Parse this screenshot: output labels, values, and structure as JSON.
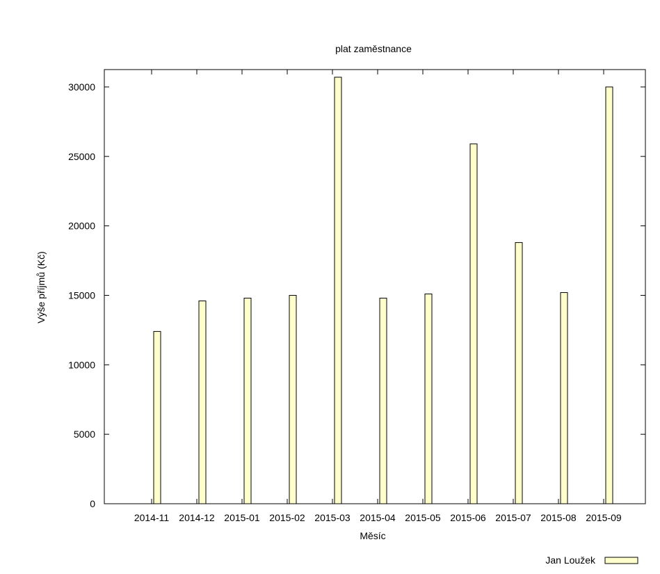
{
  "chart_data": {
    "type": "bar",
    "title": "plat zaměstnance",
    "xlabel": "Měsíc",
    "ylabel": "Výše příjmů (Kč)",
    "categories": [
      "2014-11",
      "2014-12",
      "2015-01",
      "2015-02",
      "2015-03",
      "2015-04",
      "2015-05",
      "2015-06",
      "2015-07",
      "2015-08",
      "2015-09"
    ],
    "series": [
      {
        "name": "Jan Loužek",
        "values": [
          12400,
          14600,
          14800,
          15000,
          30700,
          14800,
          15100,
          25900,
          18800,
          15200,
          30000
        ]
      }
    ],
    "yticks": [
      0,
      5000,
      10000,
      15000,
      20000,
      25000,
      30000
    ],
    "ylim": [
      0,
      31250
    ],
    "grid": false,
    "legend_position": "bottom-right",
    "bar_fill": "#ffffcc",
    "bar_stroke": "#000000"
  }
}
